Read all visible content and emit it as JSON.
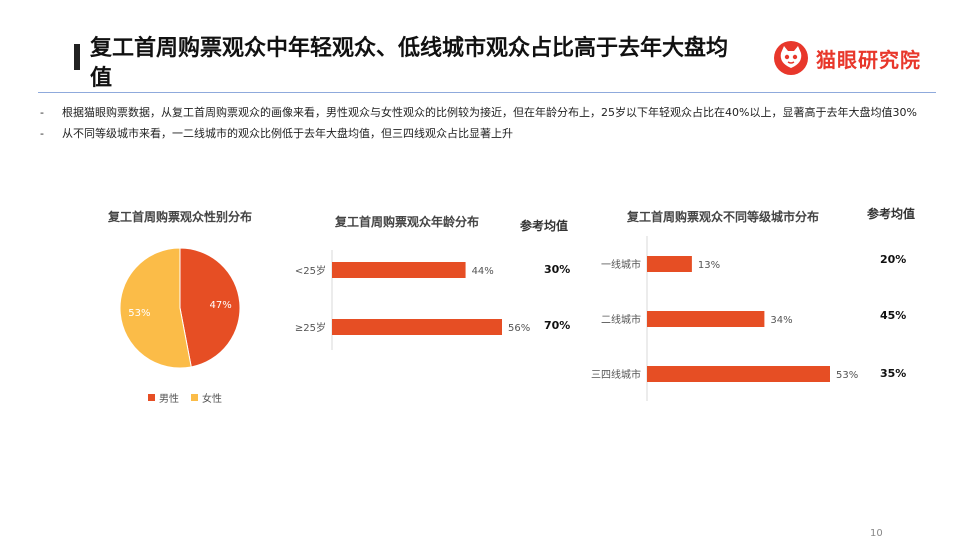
{
  "header": {
    "title": "复工首周购票观众中年轻观众、低线城市观众占比高于去年大盘均值",
    "logo_text": "猫眼研究院",
    "logo_icon": "cat-face-icon"
  },
  "bullets": [
    "根据猫眼购票数据，从复工首周购票观众的画像来看，男性观众与女性观众的比例较为接近，但在年龄分布上，25岁以下年轻观众占比在40%以上，显著高于去年大盘均值30%",
    "从不同等级城市来看，一二线城市的观众比例低于去年大盘均值，但三四线观众占比显著上升"
  ],
  "bullet_marker": "-",
  "colors": {
    "male": "#e64e24",
    "female": "#fbbc48",
    "bar": "#e64e24",
    "accent": "#e8372b"
  },
  "chart_data": [
    {
      "type": "pie",
      "title": "复工首周购票观众性别分布",
      "labels": [
        "男性",
        "女性"
      ],
      "values": [
        47,
        53
      ],
      "value_labels": [
        "47%",
        "53%"
      ],
      "legend_position": "bottom"
    },
    {
      "type": "bar",
      "orientation": "horizontal",
      "title": "复工首周购票观众年龄分布",
      "categories": [
        "<25岁",
        "≥25岁"
      ],
      "values": [
        44,
        56
      ],
      "value_labels": [
        "44%",
        "56%"
      ],
      "xlim": [
        0,
        56
      ],
      "reference": {
        "label": "参考均值",
        "values": [
          "30%",
          "70%"
        ]
      }
    },
    {
      "type": "bar",
      "orientation": "horizontal",
      "title": "复工首周购票观众不同等级城市分布",
      "categories": [
        "一线城市",
        "二线城市",
        "三四线城市"
      ],
      "values": [
        13,
        34,
        53
      ],
      "value_labels": [
        "13%",
        "34%",
        "53%"
      ],
      "xlim": [
        0,
        53
      ],
      "reference": {
        "label": "参考均值",
        "values": [
          "20%",
          "45%",
          "35%"
        ]
      }
    }
  ],
  "page_number": "10"
}
